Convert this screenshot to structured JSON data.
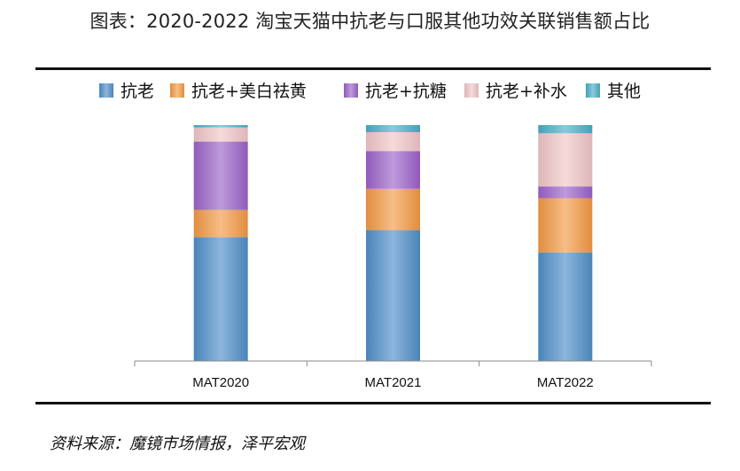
{
  "title": "图表：2020-2022 淘宝天猫中抗老与口服其他功效关联销售额占比",
  "source": "资料来源：魔镜市场情报，泽平宏观",
  "colors": {
    "抗老": "#4f8fc8",
    "抗老+美白祛黄": "#f39a45",
    "抗老+抗糖": "#9b63c9",
    "抗老+补水": "#f1c6c8",
    "其他": "#4aaec9"
  },
  "chart_data": {
    "type": "bar",
    "stacked": true,
    "categories": [
      "MAT2020",
      "MAT2021",
      "MAT2022"
    ],
    "series": [
      {
        "name": "抗老",
        "values": [
          52.5,
          55.5,
          46.0
        ]
      },
      {
        "name": "抗老+美白祛黄",
        "values": [
          11.5,
          17.5,
          23.0
        ]
      },
      {
        "name": "抗老+抗糖",
        "values": [
          29.0,
          16.0,
          5.0
        ]
      },
      {
        "name": "抗老+补水",
        "values": [
          6.0,
          8.0,
          22.5
        ]
      },
      {
        "name": "其他",
        "values": [
          1.0,
          3.0,
          3.5
        ]
      }
    ],
    "ylim": [
      0,
      100
    ],
    "legend_position": "top",
    "grid": false
  }
}
